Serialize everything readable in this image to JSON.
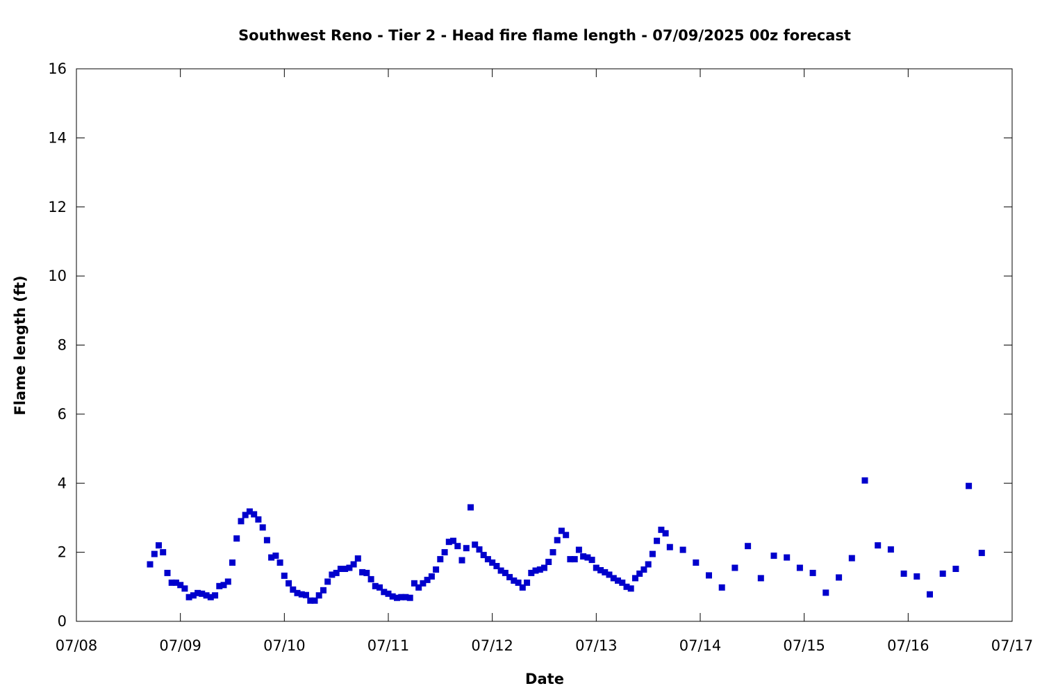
{
  "chart_data": {
    "type": "scatter",
    "title": "Southwest Reno - Tier 2 - Head fire flame length - 07/09/2025 00z forecast",
    "xlabel": "Date",
    "ylabel": "Flame length (ft)",
    "x_axis": "date",
    "xlim": [
      "07/08",
      "07/17"
    ],
    "ylim": [
      0,
      16
    ],
    "x_ticks": [
      "07/08",
      "07/09",
      "07/10",
      "07/11",
      "07/12",
      "07/13",
      "07/14",
      "07/15",
      "07/16",
      "07/17"
    ],
    "y_ticks": [
      0,
      2,
      4,
      6,
      8,
      10,
      12,
      14,
      16
    ],
    "grid": false,
    "legend": "none",
    "marker": "square",
    "series": [
      {
        "color": "#0000cc",
        "x": [
          "07/08 17:00",
          "07/08 18:00",
          "07/08 19:00",
          "07/08 20:00",
          "07/08 21:00",
          "07/08 22:00",
          "07/08 23:00",
          "07/09 00:00",
          "07/09 01:00",
          "07/09 02:00",
          "07/09 03:00",
          "07/09 04:00",
          "07/09 05:00",
          "07/09 06:00",
          "07/09 07:00",
          "07/09 08:00",
          "07/09 09:00",
          "07/09 10:00",
          "07/09 11:00",
          "07/09 12:00",
          "07/09 13:00",
          "07/09 14:00",
          "07/09 15:00",
          "07/09 16:00",
          "07/09 17:00",
          "07/09 18:00",
          "07/09 19:00",
          "07/09 20:00",
          "07/09 21:00",
          "07/09 22:00",
          "07/09 23:00",
          "07/10 00:00",
          "07/10 01:00",
          "07/10 02:00",
          "07/10 03:00",
          "07/10 04:00",
          "07/10 05:00",
          "07/10 06:00",
          "07/10 07:00",
          "07/10 08:00",
          "07/10 09:00",
          "07/10 10:00",
          "07/10 11:00",
          "07/10 12:00",
          "07/10 13:00",
          "07/10 14:00",
          "07/10 15:00",
          "07/10 16:00",
          "07/10 17:00",
          "07/10 18:00",
          "07/10 19:00",
          "07/10 20:00",
          "07/10 21:00",
          "07/10 22:00",
          "07/10 23:00",
          "07/11 00:00",
          "07/11 01:00",
          "07/11 02:00",
          "07/11 03:00",
          "07/11 04:00",
          "07/11 05:00",
          "07/11 06:00",
          "07/11 07:00",
          "07/11 08:00",
          "07/11 09:00",
          "07/11 10:00",
          "07/11 11:00",
          "07/11 12:00",
          "07/11 13:00",
          "07/11 14:00",
          "07/11 15:00",
          "07/11 16:00",
          "07/11 17:00",
          "07/11 18:00",
          "07/11 19:00",
          "07/11 20:00",
          "07/11 21:00",
          "07/11 22:00",
          "07/11 23:00",
          "07/12 00:00",
          "07/12 01:00",
          "07/12 02:00",
          "07/12 03:00",
          "07/12 04:00",
          "07/12 05:00",
          "07/12 06:00",
          "07/12 07:00",
          "07/12 08:00",
          "07/12 09:00",
          "07/12 10:00",
          "07/12 11:00",
          "07/12 12:00",
          "07/12 13:00",
          "07/12 14:00",
          "07/12 15:00",
          "07/12 16:00",
          "07/12 17:00",
          "07/12 18:00",
          "07/12 19:00",
          "07/12 20:00",
          "07/12 21:00",
          "07/12 22:00",
          "07/12 23:00",
          "07/13 00:00",
          "07/13 01:00",
          "07/13 02:00",
          "07/13 03:00",
          "07/13 04:00",
          "07/13 05:00",
          "07/13 06:00",
          "07/13 07:00",
          "07/13 08:00",
          "07/13 09:00",
          "07/13 10:00",
          "07/13 11:00",
          "07/13 12:00",
          "07/13 13:00",
          "07/13 14:00",
          "07/13 15:00",
          "07/13 16:00",
          "07/13 17:00",
          "07/13 20:00",
          "07/13 23:00",
          "07/14 02:00",
          "07/14 05:00",
          "07/14 08:00",
          "07/14 11:00",
          "07/14 14:00",
          "07/14 17:00",
          "07/14 20:00",
          "07/14 23:00",
          "07/15 02:00",
          "07/15 05:00",
          "07/15 08:00",
          "07/15 11:00",
          "07/15 14:00",
          "07/15 17:00",
          "07/15 20:00",
          "07/15 23:00",
          "07/16 02:00",
          "07/16 05:00",
          "07/16 08:00",
          "07/16 11:00",
          "07/16 14:00",
          "07/16 17:00"
        ],
        "y": [
          1.65,
          1.95,
          2.2,
          2.0,
          1.4,
          1.12,
          1.12,
          1.05,
          0.95,
          0.7,
          0.75,
          0.82,
          0.8,
          0.75,
          0.7,
          0.75,
          1.02,
          1.05,
          1.15,
          1.7,
          2.4,
          2.9,
          3.08,
          3.18,
          3.1,
          2.95,
          2.72,
          2.35,
          1.85,
          1.9,
          1.7,
          1.32,
          1.1,
          0.92,
          0.82,
          0.78,
          0.76,
          0.6,
          0.6,
          0.75,
          0.9,
          1.15,
          1.35,
          1.4,
          1.52,
          1.52,
          1.55,
          1.65,
          1.82,
          1.42,
          1.4,
          1.22,
          1.02,
          0.98,
          0.85,
          0.8,
          0.72,
          0.68,
          0.7,
          0.7,
          0.68,
          1.1,
          0.98,
          1.1,
          1.2,
          1.3,
          1.5,
          1.8,
          2.0,
          2.3,
          2.33,
          2.18,
          1.77,
          2.12,
          3.3,
          2.22,
          2.08,
          1.92,
          1.8,
          1.7,
          1.6,
          1.47,
          1.4,
          1.28,
          1.18,
          1.12,
          0.98,
          1.12,
          1.4,
          1.47,
          1.5,
          1.55,
          1.72,
          2.0,
          2.35,
          2.62,
          2.5,
          1.8,
          1.8,
          2.07,
          1.88,
          1.85,
          1.78,
          1.55,
          1.48,
          1.42,
          1.35,
          1.25,
          1.18,
          1.12,
          1.0,
          0.95,
          1.25,
          1.38,
          1.5,
          1.65,
          1.95,
          2.33,
          2.65,
          2.55,
          2.15,
          2.07,
          1.7,
          1.33,
          0.98,
          1.55,
          2.18,
          1.25,
          1.9,
          1.85,
          1.55,
          1.4,
          0.83,
          1.27,
          1.83,
          4.08,
          2.2,
          2.08,
          1.38,
          1.3,
          0.78,
          1.38,
          1.52,
          3.92,
          1.98
        ]
      }
    ]
  }
}
